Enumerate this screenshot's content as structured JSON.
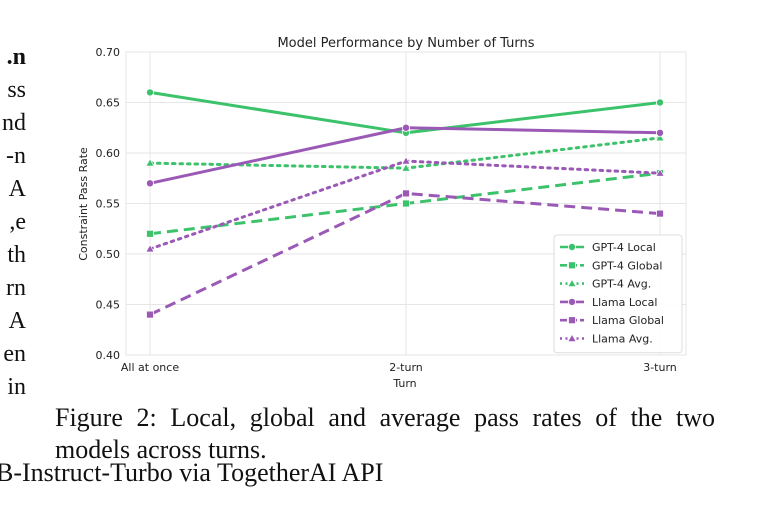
{
  "left_column_fragments": [
    "n.",
    "ss",
    "nd",
    "n-",
    "A",
    "e,",
    "th",
    "rn",
    "A",
    "en",
    "in"
  ],
  "chart_data": {
    "type": "line",
    "title": "Model Performance by Number of Turns",
    "xlabel": "Turn",
    "ylabel": "Constraint Pass Rate",
    "categories": [
      "All at once",
      "2-turn",
      "3-turn"
    ],
    "ylim": [
      0.4,
      0.7
    ],
    "yticks": [
      "0.40",
      "0.45",
      "0.50",
      "0.55",
      "0.60",
      "0.65",
      "0.70"
    ],
    "grid": true,
    "legend_position": "bottom-right",
    "series": [
      {
        "name": "GPT-4 Local",
        "values": [
          0.66,
          0.62,
          0.65
        ],
        "color": "#3cc26b",
        "dash": "solid",
        "marker": "circle"
      },
      {
        "name": "GPT-4 Global",
        "values": [
          0.52,
          0.55,
          0.58
        ],
        "color": "#3cc26b",
        "dash": "dashed",
        "marker": "square"
      },
      {
        "name": "GPT-4 Avg.",
        "values": [
          0.59,
          0.585,
          0.615
        ],
        "color": "#3cc26b",
        "dash": "dotted",
        "marker": "triangle"
      },
      {
        "name": "Llama Local",
        "values": [
          0.57,
          0.625,
          0.62
        ],
        "color": "#9b59b6",
        "dash": "solid",
        "marker": "circle"
      },
      {
        "name": "Llama Global",
        "values": [
          0.44,
          0.56,
          0.54
        ],
        "color": "#9b59b6",
        "dash": "dashed",
        "marker": "square"
      },
      {
        "name": "Llama Avg.",
        "values": [
          0.505,
          0.592,
          0.58
        ],
        "color": "#9b59b6",
        "dash": "dotted",
        "marker": "triangle"
      }
    ]
  },
  "caption": "Figure 2: Local, global and average pass rates of the two models across turns.",
  "footer_text": "B-Instruct-Turbo via TogetherAI API"
}
